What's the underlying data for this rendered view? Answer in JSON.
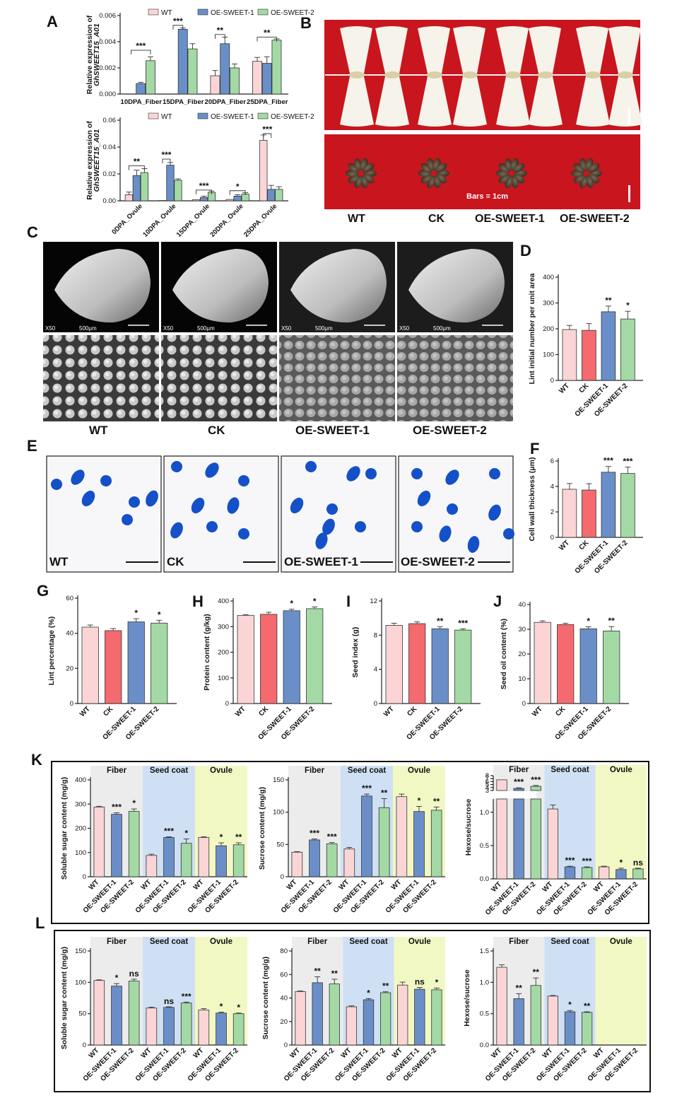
{
  "colors": {
    "WT": "#fbd5d6",
    "CK": "#f46a6e",
    "OE1": "#6a8fc8",
    "OE2": "#a3d9a5",
    "fiber_bg": "#ececec",
    "coat_bg": "#cfe0f4",
    "ovule_bg": "#f2f8c4",
    "red_bg": "#c8151e"
  },
  "panelA": {
    "letter": "A",
    "top": {
      "legend": [
        "WT",
        "OE-SWEET-1",
        "OE-SWEET-2"
      ],
      "ylabel": [
        "Relative expression of",
        "GhSWEET15_A01"
      ],
      "yticks": [
        "0.000",
        "0.002",
        "0.004",
        "0.006"
      ]
    },
    "bottom": {
      "legend": [
        "WT",
        "OE-SWEET-1",
        "OE-SWEET-2"
      ],
      "ylabel": [
        "Relative expression of",
        "GhSWEET15_A01"
      ],
      "yticks": [
        "0.00",
        "0.02",
        "0.04",
        "0.06"
      ]
    }
  },
  "panelB": {
    "letter": "B",
    "scale_text": "Bars = 1cm",
    "labels": [
      "WT",
      "CK",
      "OE-SWEET-1",
      "OE-SWEET-2"
    ]
  },
  "panelC": {
    "letter": "C",
    "labels": [
      "WT",
      "CK",
      "OE-SWEET-1",
      "OE-SWEET-2"
    ],
    "sem_text": [
      "X50",
      "500μm"
    ]
  },
  "panelD": {
    "letter": "D",
    "ylabel": "Lint initial number per unit area",
    "yticks": [
      "0",
      "100",
      "200",
      "300",
      "400"
    ]
  },
  "panelE": {
    "letter": "E",
    "labels": [
      "WT",
      "CK",
      "OE-SWEET-1",
      "OE-SWEET-2"
    ]
  },
  "panelF": {
    "letter": "F",
    "ylabel": "Cell wall thickness (μm)",
    "yticks": [
      "0",
      "2",
      "4",
      "6"
    ]
  },
  "panelG": {
    "letter": "G",
    "ylabel": "Lint percentage (%)",
    "yticks": [
      "0",
      "20",
      "40",
      "60"
    ]
  },
  "panelH": {
    "letter": "H",
    "ylabel": "Protein content (g/kg)",
    "yticks": [
      "0",
      "100",
      "200",
      "300",
      "400"
    ]
  },
  "panelI": {
    "letter": "I",
    "ylabel": "Seed index (g)",
    "yticks": [
      "0",
      "4",
      "8",
      "12"
    ]
  },
  "panelJ": {
    "letter": "J",
    "ylabel": "Seed oil content (%)",
    "yticks": [
      "0",
      "10",
      "20",
      "30",
      "40"
    ]
  },
  "panelK": {
    "letter": "K",
    "regions": [
      "Fiber",
      "Seed coat",
      "Ovule"
    ],
    "k1": {
      "ylabel": "Soluble sugar content (mg/g)",
      "yticks": [
        "0",
        "100",
        "200",
        "300",
        "400"
      ]
    },
    "k2": {
      "ylabel": "Sucrose content (mg/g)",
      "yticks": [
        "0",
        "50",
        "100",
        "150"
      ]
    },
    "k3": {
      "ylabel": "Hexose/sucrose",
      "yticks": [
        "0.0",
        "0.5",
        "1.0",
        "3",
        "4",
        "5",
        "6",
        "7",
        "8"
      ]
    }
  },
  "panelL": {
    "letter": "L",
    "regions": [
      "Fiber",
      "Seed coat",
      "Ovule"
    ],
    "l1": {
      "ylabel": "Soluble sugar content (mg/g)",
      "yticks": [
        "0",
        "50",
        "100",
        "150"
      ]
    },
    "l2": {
      "ylabel": "Sucrose content (mg/g)",
      "yticks": [
        "0",
        "20",
        "40",
        "60",
        "80"
      ]
    },
    "l3": {
      "ylabel": "Hexose/sucrose",
      "yticks": [
        "0.0",
        "0.5",
        "1.0",
        "1.5"
      ]
    }
  },
  "chart_data": [
    {
      "id": "A_top",
      "type": "bar",
      "categories": [
        "10DPA_Fiber",
        "15DPA_Fiber",
        "20DPA_Fiber",
        "25DPA_Fiber"
      ],
      "ylim": [
        0,
        0.006
      ],
      "series": [
        {
          "name": "WT",
          "values": [
            0.0,
            0.0,
            0.0014,
            0.0025
          ]
        },
        {
          "name": "OE-SWEET-1",
          "values": [
            0.0008,
            0.00495,
            0.00385,
            0.00235
          ]
        },
        {
          "name": "OE-SWEET-2",
          "values": [
            0.00255,
            0.00345,
            0.002,
            0.00412
          ]
        }
      ],
      "significance": [
        "***",
        "***",
        "**",
        "**"
      ]
    },
    {
      "id": "A_bottom",
      "type": "bar",
      "categories": [
        "0DPA_Ovule",
        "10DPA_Ovule",
        "15DPA_Ovule",
        "20DPA_Ovule",
        "25DPA_Ovule"
      ],
      "ylim": [
        0,
        0.06
      ],
      "series": [
        {
          "name": "WT",
          "values": [
            0.0045,
            0.0002,
            0.0008,
            0.001,
            0.045
          ]
        },
        {
          "name": "OE-SWEET-1",
          "values": [
            0.0188,
            0.0265,
            0.0025,
            0.0035,
            0.0085
          ]
        },
        {
          "name": "OE-SWEET-2",
          "values": [
            0.021,
            0.0153,
            0.0062,
            0.005,
            0.0085
          ]
        }
      ],
      "significance": [
        "**",
        "***",
        "***",
        "*",
        "***"
      ]
    },
    {
      "id": "D",
      "type": "bar",
      "categories": [
        "WT",
        "CK",
        "OE-SWEET-1",
        "OE-SWEET-2"
      ],
      "values": [
        197,
        194,
        266,
        238
      ],
      "ylim": [
        0,
        400
      ],
      "significance": [
        "",
        "",
        "**",
        "*"
      ]
    },
    {
      "id": "F",
      "type": "bar",
      "categories": [
        "WT",
        "CK",
        "OE-SWEET-1",
        "OE-SWEET-2"
      ],
      "values": [
        3.78,
        3.72,
        5.12,
        5.02
      ],
      "ylim": [
        0,
        6
      ],
      "significance": [
        "",
        "",
        "***",
        "***"
      ]
    },
    {
      "id": "G",
      "type": "bar",
      "categories": [
        "WT",
        "CK",
        "OE-SWEET-1",
        "OE-SWEET-2"
      ],
      "values": [
        43.5,
        41.5,
        46.5,
        45.8
      ],
      "ylim": [
        0,
        60
      ],
      "significance": [
        "",
        "",
        "*",
        "*"
      ]
    },
    {
      "id": "H",
      "type": "bar",
      "categories": [
        "WT",
        "CK",
        "OE-SWEET-1",
        "OE-SWEET-2"
      ],
      "values": [
        344,
        348,
        362,
        370
      ],
      "ylim": [
        0,
        400
      ],
      "significance": [
        "",
        "",
        "*",
        "*"
      ]
    },
    {
      "id": "I",
      "type": "bar",
      "categories": [
        "WT",
        "CK",
        "OE-SWEET-1",
        "OE-SWEET-2"
      ],
      "values": [
        9.15,
        9.35,
        8.75,
        8.6
      ],
      "ylim": [
        0,
        12
      ],
      "significance": [
        "",
        "",
        "**",
        "***"
      ]
    },
    {
      "id": "J",
      "type": "bar",
      "categories": [
        "WT",
        "CK",
        "OE-SWEET-1",
        "OE-SWEET-2"
      ],
      "values": [
        32.8,
        31.9,
        30.2,
        29.3
      ],
      "ylim": [
        0,
        40
      ],
      "significance": [
        "",
        "",
        "*",
        "**"
      ]
    },
    {
      "id": "K1",
      "type": "bar",
      "categories": [
        "WT",
        "OE-SWEET-1",
        "OE-SWEET-2",
        "WT",
        "OE-SWEET-1",
        "OE-SWEET-2",
        "WT",
        "OE-SWEET-1",
        "OE-SWEET-2"
      ],
      "values": [
        288,
        258,
        270,
        88,
        162,
        138,
        162,
        128,
        132
      ],
      "ylim": [
        0,
        400
      ],
      "significance": [
        "",
        "***",
        "*",
        "",
        "***",
        "*",
        "",
        "*",
        "**"
      ]
    },
    {
      "id": "K2",
      "type": "bar",
      "categories": [
        "WT",
        "OE-SWEET-1",
        "OE-SWEET-2",
        "WT",
        "OE-SWEET-1",
        "OE-SWEET-2",
        "WT",
        "OE-SWEET-1",
        "OE-SWEET-2"
      ],
      "values": [
        38,
        57,
        51,
        43,
        125,
        107,
        124,
        101,
        103
      ],
      "ylim": [
        0,
        150
      ],
      "significance": [
        "",
        "***",
        "***",
        "",
        "***",
        "**",
        "",
        "*",
        "**"
      ]
    },
    {
      "id": "K3",
      "type": "bar",
      "categories": [
        "WT",
        "OE-SWEET-1",
        "OE-SWEET-2",
        "WT",
        "OE-SWEET-1",
        "OE-SWEET-2",
        "WT",
        "OE-SWEET-1",
        "OE-SWEET-2"
      ],
      "values": [
        6.6,
        3.7,
        4.4,
        1.05,
        0.18,
        0.17,
        0.18,
        0.14,
        0.15
      ],
      "significance": [
        "",
        "***",
        "***",
        "",
        "***",
        "***",
        "",
        "*",
        "ns"
      ]
    },
    {
      "id": "L1",
      "type": "bar",
      "categories": [
        "WT",
        "OE-SWEET-1",
        "OE-SWEET-2",
        "WT",
        "OE-SWEET-1",
        "OE-SWEET-2",
        "WT",
        "OE-SWEET-1",
        "OE-SWEET-2"
      ],
      "values": [
        103,
        94,
        102,
        59,
        60,
        67,
        56,
        51,
        50
      ],
      "ylim": [
        0,
        150
      ],
      "significance": [
        "",
        "*",
        "ns",
        "",
        "ns",
        "***",
        "",
        "*",
        "*"
      ]
    },
    {
      "id": "L2",
      "type": "bar",
      "categories": [
        "WT",
        "OE-SWEET-1",
        "OE-SWEET-2",
        "WT",
        "OE-SWEET-1",
        "OE-SWEET-2",
        "WT",
        "OE-SWEET-1",
        "OE-SWEET-2"
      ],
      "values": [
        45.5,
        53,
        52,
        32.5,
        38.5,
        44.5,
        51,
        47.5,
        47
      ],
      "ylim": [
        0,
        80
      ],
      "significance": [
        "",
        "**",
        "**",
        "",
        "*",
        "**",
        "",
        "ns",
        "*"
      ]
    },
    {
      "id": "L3",
      "type": "bar",
      "categories": [
        "WT",
        "OE-SWEET-1",
        "OE-SWEET-2",
        "WT",
        "OE-SWEET-1",
        "OE-SWEET-2",
        "WT",
        "OE-SWEET-1",
        "OE-SWEET-2"
      ],
      "values": [
        1.24,
        0.74,
        0.95,
        0.78,
        0.53,
        0.52,
        0,
        0,
        0
      ],
      "ylim": [
        0,
        1.5
      ],
      "significance": [
        "",
        "**",
        "**",
        "",
        "*",
        "**",
        "",
        "",
        ""
      ]
    }
  ]
}
